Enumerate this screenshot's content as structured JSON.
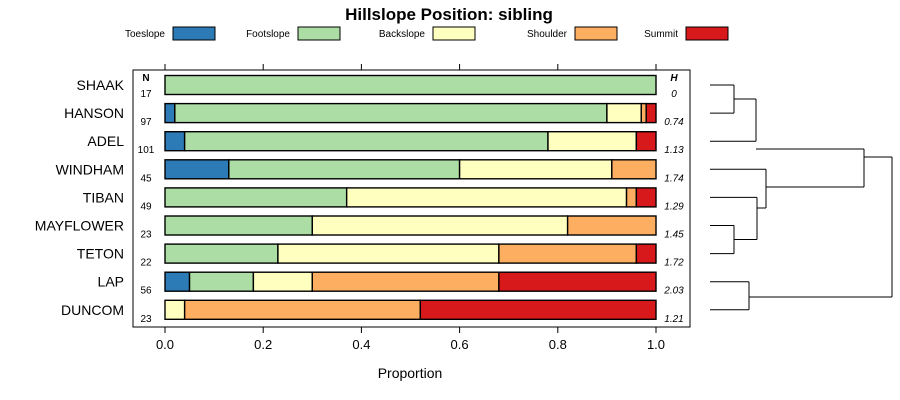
{
  "chart_data": {
    "type": "bar",
    "title": "Hillslope Position: sibling",
    "xlabel": "Proportion",
    "ylabel": "",
    "xlim": [
      0,
      1
    ],
    "xticks": [
      "0.0",
      "0.2",
      "0.4",
      "0.6",
      "0.8",
      "1.0"
    ],
    "n_header": "N",
    "h_header": "H",
    "legend_position": "top",
    "series": [
      {
        "name": "Toeslope",
        "color": "#2c7bb6"
      },
      {
        "name": "Footslope",
        "color": "#abdda4"
      },
      {
        "name": "Backslope",
        "color": "#ffffbf"
      },
      {
        "name": "Shoulder",
        "color": "#fdae61"
      },
      {
        "name": "Summit",
        "color": "#d7191c"
      }
    ],
    "categories": [
      "SHAAK",
      "HANSON",
      "ADEL",
      "WINDHAM",
      "TIBAN",
      "MAYFLOWER",
      "TETON",
      "LAP",
      "DUNCOM"
    ],
    "n": [
      "17",
      "97",
      "101",
      "45",
      "49",
      "23",
      "22",
      "56",
      "23"
    ],
    "h": [
      "0",
      "0.74",
      "1.13",
      "1.74",
      "1.29",
      "1.45",
      "1.72",
      "2.03",
      "1.21"
    ],
    "proportions": [
      [
        0.0,
        1.0,
        0.0,
        0.0,
        0.0
      ],
      [
        0.02,
        0.88,
        0.07,
        0.01,
        0.02
      ],
      [
        0.04,
        0.74,
        0.18,
        0.0,
        0.04
      ],
      [
        0.13,
        0.47,
        0.31,
        0.09,
        0.0
      ],
      [
        0.0,
        0.37,
        0.57,
        0.02,
        0.04
      ],
      [
        0.0,
        0.3,
        0.52,
        0.18,
        0.0
      ],
      [
        0.0,
        0.23,
        0.45,
        0.28,
        0.04
      ],
      [
        0.05,
        0.13,
        0.12,
        0.38,
        0.32
      ],
      [
        0.0,
        0.0,
        0.04,
        0.48,
        0.48
      ]
    ]
  }
}
